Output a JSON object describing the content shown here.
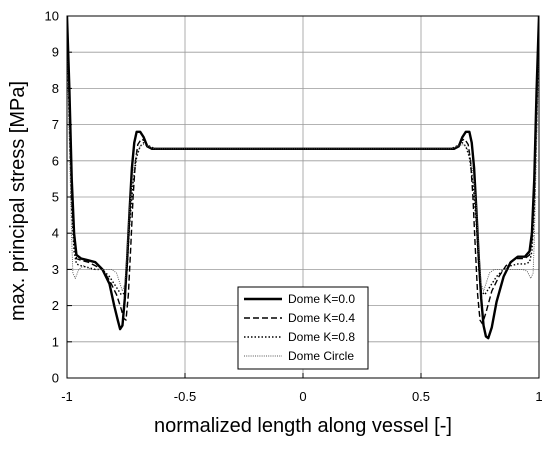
{
  "chart_data": {
    "type": "line",
    "title": "",
    "xlabel": "normalized length along vessel [-]",
    "ylabel": "max. principal stress [MPa]",
    "xlim": [
      -1,
      1
    ],
    "ylim": [
      0,
      10
    ],
    "x_ticks": [
      -1,
      -0.5,
      0,
      0.5,
      1
    ],
    "x_tick_labels": [
      "-1",
      "-0.5",
      "0",
      "0.5",
      "1"
    ],
    "y_ticks": [
      0,
      1,
      2,
      3,
      4,
      5,
      6,
      7,
      8,
      9,
      10
    ],
    "y_tick_labels": [
      "0",
      "1",
      "2",
      "3",
      "4",
      "5",
      "6",
      "7",
      "8",
      "9",
      "10"
    ],
    "grid": true,
    "legend_position": "bottom-right",
    "series": [
      {
        "name": "Dome K=0.0",
        "style": "solid-thick",
        "points": [
          [
            -1,
            10
          ],
          [
            -0.99,
            8
          ],
          [
            -0.98,
            5.5
          ],
          [
            -0.97,
            4.0
          ],
          [
            -0.96,
            3.4
          ],
          [
            -0.94,
            3.3
          ],
          [
            -0.91,
            3.25
          ],
          [
            -0.88,
            3.2
          ],
          [
            -0.85,
            3.0
          ],
          [
            -0.82,
            2.6
          ],
          [
            -0.8,
            2.0
          ],
          [
            -0.785,
            1.6
          ],
          [
            -0.775,
            1.35
          ],
          [
            -0.765,
            1.45
          ],
          [
            -0.755,
            2.2
          ],
          [
            -0.745,
            3.3
          ],
          [
            -0.735,
            4.6
          ],
          [
            -0.725,
            5.8
          ],
          [
            -0.715,
            6.5
          ],
          [
            -0.705,
            6.8
          ],
          [
            -0.69,
            6.8
          ],
          [
            -0.675,
            6.65
          ],
          [
            -0.66,
            6.4
          ],
          [
            -0.64,
            6.33
          ],
          [
            -0.6,
            6.33
          ],
          [
            0.6,
            6.33
          ],
          [
            0.64,
            6.33
          ],
          [
            0.66,
            6.4
          ],
          [
            0.675,
            6.65
          ],
          [
            0.69,
            6.8
          ],
          [
            0.705,
            6.8
          ],
          [
            0.715,
            6.5
          ],
          [
            0.725,
            5.8
          ],
          [
            0.735,
            4.6
          ],
          [
            0.745,
            3.3
          ],
          [
            0.755,
            2.2
          ],
          [
            0.765,
            1.45
          ],
          [
            0.775,
            1.15
          ],
          [
            0.785,
            1.1
          ],
          [
            0.8,
            1.4
          ],
          [
            0.82,
            2.1
          ],
          [
            0.85,
            2.8
          ],
          [
            0.88,
            3.2
          ],
          [
            0.91,
            3.35
          ],
          [
            0.94,
            3.35
          ],
          [
            0.96,
            3.5
          ],
          [
            0.97,
            4.0
          ],
          [
            0.98,
            5.5
          ],
          [
            0.99,
            8
          ],
          [
            1,
            10
          ]
        ]
      },
      {
        "name": "Dome K=0.4",
        "style": "dashed",
        "points": [
          [
            -1,
            9.8
          ],
          [
            -0.99,
            7.5
          ],
          [
            -0.98,
            5.0
          ],
          [
            -0.97,
            3.8
          ],
          [
            -0.96,
            3.3
          ],
          [
            -0.94,
            3.25
          ],
          [
            -0.91,
            3.2
          ],
          [
            -0.88,
            3.1
          ],
          [
            -0.85,
            3.0
          ],
          [
            -0.82,
            2.7
          ],
          [
            -0.79,
            2.3
          ],
          [
            -0.77,
            1.9
          ],
          [
            -0.76,
            1.65
          ],
          [
            -0.75,
            1.6
          ],
          [
            -0.74,
            2.3
          ],
          [
            -0.73,
            3.6
          ],
          [
            -0.72,
            5.0
          ],
          [
            -0.71,
            6.0
          ],
          [
            -0.7,
            6.45
          ],
          [
            -0.685,
            6.6
          ],
          [
            -0.67,
            6.55
          ],
          [
            -0.655,
            6.4
          ],
          [
            -0.64,
            6.33
          ],
          [
            -0.6,
            6.33
          ],
          [
            0.6,
            6.33
          ],
          [
            0.64,
            6.33
          ],
          [
            0.655,
            6.4
          ],
          [
            0.67,
            6.55
          ],
          [
            0.685,
            6.6
          ],
          [
            0.7,
            6.45
          ],
          [
            0.71,
            6.0
          ],
          [
            0.72,
            5.0
          ],
          [
            0.73,
            3.6
          ],
          [
            0.74,
            2.3
          ],
          [
            0.75,
            1.6
          ],
          [
            0.76,
            1.5
          ],
          [
            0.775,
            1.8
          ],
          [
            0.8,
            2.4
          ],
          [
            0.83,
            2.8
          ],
          [
            0.86,
            3.1
          ],
          [
            0.9,
            3.3
          ],
          [
            0.94,
            3.3
          ],
          [
            0.96,
            3.4
          ],
          [
            0.97,
            3.8
          ],
          [
            0.98,
            5.0
          ],
          [
            0.99,
            7.5
          ],
          [
            1,
            9.8
          ]
        ]
      },
      {
        "name": "Dome K=0.8",
        "style": "dotted",
        "points": [
          [
            -1,
            9.5
          ],
          [
            -0.99,
            7.0
          ],
          [
            -0.98,
            4.6
          ],
          [
            -0.97,
            3.5
          ],
          [
            -0.96,
            3.15
          ],
          [
            -0.94,
            3.1
          ],
          [
            -0.91,
            3.05
          ],
          [
            -0.88,
            3.0
          ],
          [
            -0.85,
            3.0
          ],
          [
            -0.82,
            2.8
          ],
          [
            -0.79,
            2.5
          ],
          [
            -0.77,
            2.3
          ],
          [
            -0.755,
            2.35
          ],
          [
            -0.745,
            3.0
          ],
          [
            -0.735,
            4.2
          ],
          [
            -0.72,
            5.4
          ],
          [
            -0.705,
            6.1
          ],
          [
            -0.69,
            6.4
          ],
          [
            -0.675,
            6.5
          ],
          [
            -0.66,
            6.45
          ],
          [
            -0.645,
            6.38
          ],
          [
            -0.62,
            6.33
          ],
          [
            -0.6,
            6.33
          ],
          [
            0.6,
            6.33
          ],
          [
            0.62,
            6.33
          ],
          [
            0.645,
            6.38
          ],
          [
            0.66,
            6.45
          ],
          [
            0.675,
            6.5
          ],
          [
            0.69,
            6.4
          ],
          [
            0.705,
            6.1
          ],
          [
            0.72,
            5.4
          ],
          [
            0.735,
            4.2
          ],
          [
            0.745,
            3.0
          ],
          [
            0.755,
            2.4
          ],
          [
            0.77,
            2.3
          ],
          [
            0.79,
            2.5
          ],
          [
            0.82,
            2.8
          ],
          [
            0.85,
            3.0
          ],
          [
            0.88,
            3.1
          ],
          [
            0.91,
            3.15
          ],
          [
            0.94,
            3.15
          ],
          [
            0.96,
            3.2
          ],
          [
            0.97,
            3.5
          ],
          [
            0.98,
            4.6
          ],
          [
            0.99,
            7.0
          ],
          [
            1,
            9.5
          ]
        ]
      },
      {
        "name": "Dome Circle",
        "style": "thin-dotted",
        "points": [
          [
            -1,
            9.0
          ],
          [
            -0.99,
            6.5
          ],
          [
            -0.98,
            3.8
          ],
          [
            -0.975,
            2.9
          ],
          [
            -0.965,
            2.75
          ],
          [
            -0.95,
            3.0
          ],
          [
            -0.93,
            3.1
          ],
          [
            -0.9,
            3.0
          ],
          [
            -0.87,
            3.0
          ],
          [
            -0.84,
            3.0
          ],
          [
            -0.81,
            3.0
          ],
          [
            -0.79,
            2.9
          ],
          [
            -0.775,
            2.6
          ],
          [
            -0.765,
            2.4
          ],
          [
            -0.755,
            2.6
          ],
          [
            -0.745,
            3.5
          ],
          [
            -0.735,
            4.7
          ],
          [
            -0.72,
            5.7
          ],
          [
            -0.705,
            6.2
          ],
          [
            -0.69,
            6.4
          ],
          [
            -0.675,
            6.45
          ],
          [
            -0.655,
            6.4
          ],
          [
            -0.63,
            6.33
          ],
          [
            -0.6,
            6.33
          ],
          [
            0.6,
            6.33
          ],
          [
            0.63,
            6.33
          ],
          [
            0.655,
            6.4
          ],
          [
            0.675,
            6.45
          ],
          [
            0.69,
            6.4
          ],
          [
            0.705,
            6.2
          ],
          [
            0.72,
            5.7
          ],
          [
            0.735,
            4.7
          ],
          [
            0.745,
            3.5
          ],
          [
            0.755,
            2.6
          ],
          [
            0.765,
            2.4
          ],
          [
            0.775,
            2.6
          ],
          [
            0.79,
            2.9
          ],
          [
            0.81,
            3.0
          ],
          [
            0.84,
            3.0
          ],
          [
            0.87,
            3.0
          ],
          [
            0.9,
            3.0
          ],
          [
            0.93,
            3.0
          ],
          [
            0.95,
            2.95
          ],
          [
            0.965,
            2.75
          ],
          [
            0.975,
            2.9
          ],
          [
            0.98,
            3.8
          ],
          [
            0.99,
            6.5
          ],
          [
            1,
            9.0
          ]
        ]
      }
    ]
  }
}
